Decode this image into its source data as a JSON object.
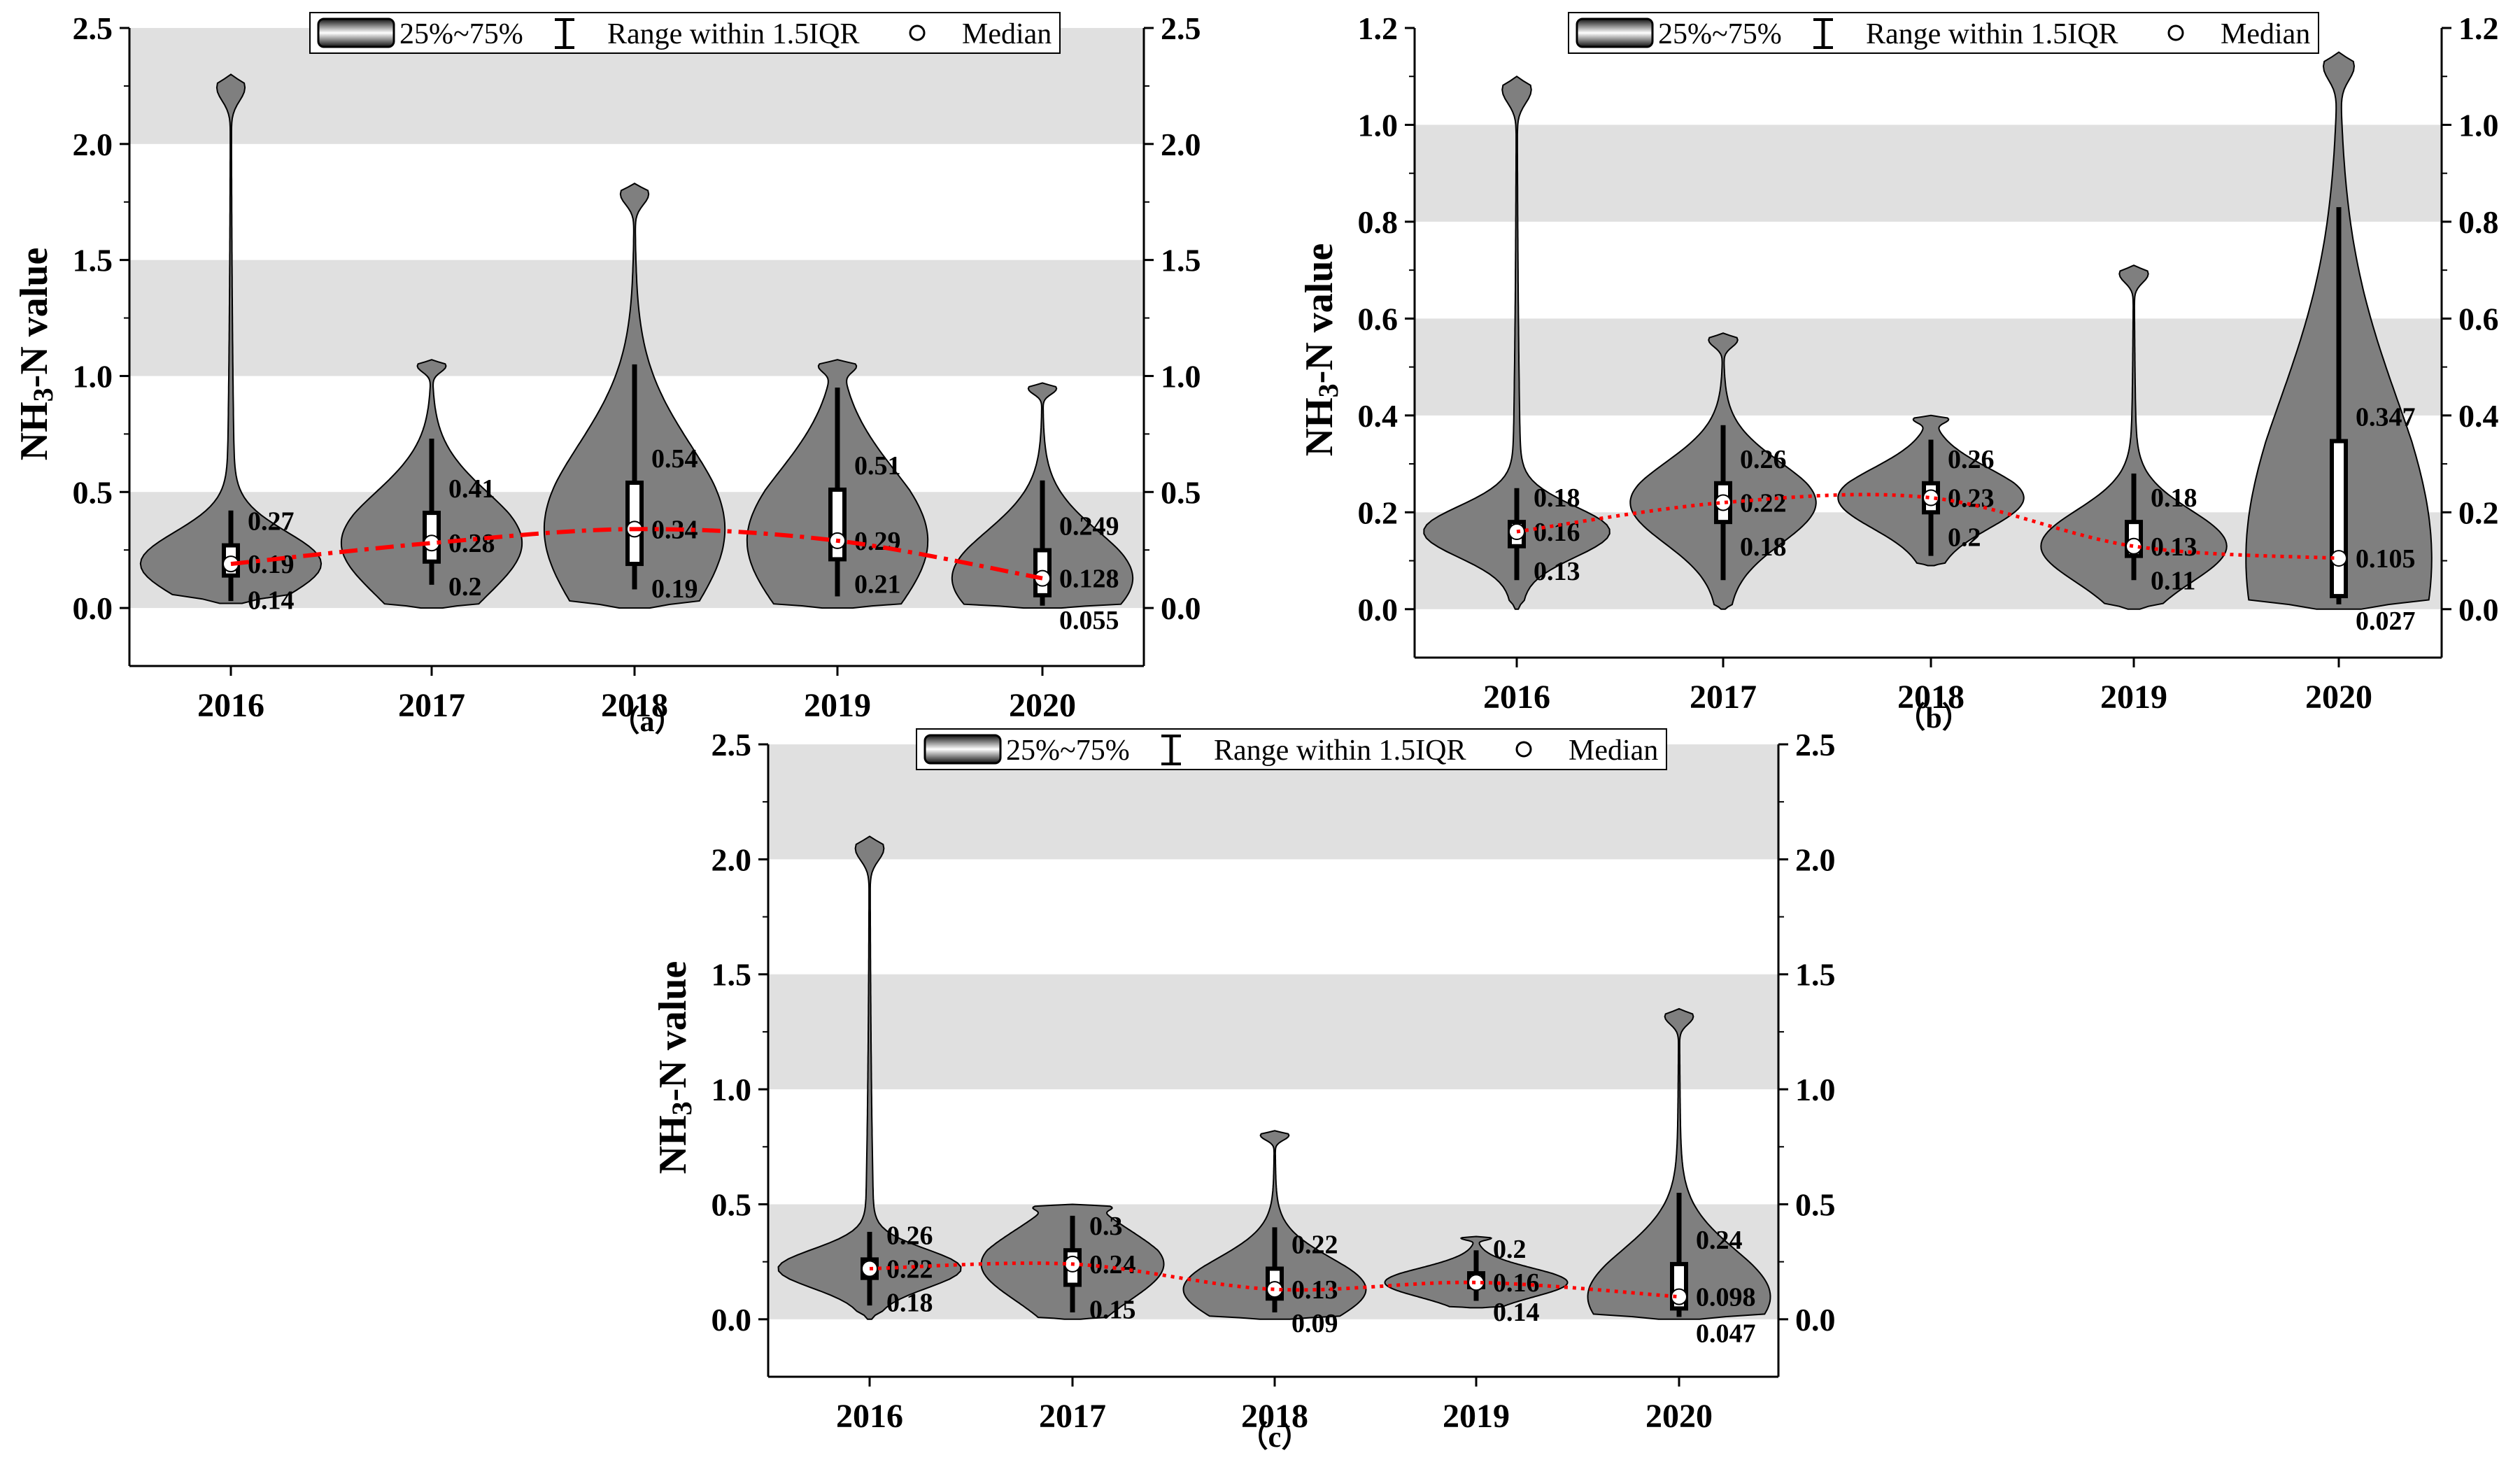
{
  "legend": {
    "box_label": "25%~75%",
    "range_label": "Range within 1.5IQR",
    "median_label": "Median"
  },
  "colors": {
    "violin_fill": "#7f7f7f",
    "band_fill": "#e0e0e0",
    "trend_line": "#ff0000",
    "axis": "#000000"
  },
  "chart_data": [
    {
      "type": "violin",
      "panel_label": "（a）",
      "ylabel": "NH3-N value",
      "ylabel_main": "NH",
      "ylabel_sub": "3",
      "ylabel_rest": "-N value",
      "categories": [
        "2016",
        "2017",
        "2018",
        "2019",
        "2020"
      ],
      "ylim": [
        -0.25,
        2.5
      ],
      "yticks": [
        "0.0",
        "0.5",
        "1.0",
        "1.5",
        "2.0",
        "2.5"
      ],
      "shaded_bands": [
        [
          0.0,
          0.5
        ],
        [
          1.0,
          1.5
        ],
        [
          2.0,
          2.5
        ]
      ],
      "trend_style": "dashdot",
      "series": [
        {
          "year": "2016",
          "min": 0.02,
          "max": 2.3,
          "q1": 0.14,
          "median": 0.19,
          "q3": 0.27,
          "whisker_low": 0.03,
          "whisker_high": 0.42,
          "labels": {
            "q3": "0.27",
            "median": "0.19",
            "q1": "0.14"
          }
        },
        {
          "year": "2017",
          "min": 0.0,
          "max": 1.07,
          "q1": 0.2,
          "median": 0.28,
          "q3": 0.41,
          "whisker_low": 0.1,
          "whisker_high": 0.73,
          "labels": {
            "q3": "0.41",
            "median": "0.28",
            "q1": "0.2"
          }
        },
        {
          "year": "2018",
          "min": 0.0,
          "max": 1.83,
          "q1": 0.19,
          "median": 0.34,
          "q3": 0.54,
          "whisker_low": 0.08,
          "whisker_high": 1.05,
          "labels": {
            "q3": "0.54",
            "median": "0.34",
            "q1": "0.19"
          }
        },
        {
          "year": "2019",
          "min": 0.0,
          "max": 1.07,
          "q1": 0.21,
          "median": 0.29,
          "q3": 0.51,
          "whisker_low": 0.05,
          "whisker_high": 0.95,
          "labels": {
            "q3": "0.51",
            "median": "0.29",
            "q1": "0.21"
          }
        },
        {
          "year": "2020",
          "min": 0.0,
          "max": 0.97,
          "q1": 0.055,
          "median": 0.128,
          "q3": 0.249,
          "whisker_low": 0.01,
          "whisker_high": 0.55,
          "labels": {
            "q3": "0.249",
            "median": "0.128",
            "q1": "0.055"
          }
        }
      ]
    },
    {
      "type": "violin",
      "panel_label": "（b）",
      "ylabel": "NH3-N value",
      "ylabel_main": "NH",
      "ylabel_sub": "3",
      "ylabel_rest": "-N value",
      "categories": [
        "2016",
        "2017",
        "2018",
        "2019",
        "2020"
      ],
      "ylim": [
        -0.1,
        1.2
      ],
      "yticks": [
        "0.0",
        "0.2",
        "0.4",
        "0.6",
        "0.8",
        "1.0",
        "1.2"
      ],
      "shaded_bands": [
        [
          0.0,
          0.2
        ],
        [
          0.4,
          0.6
        ],
        [
          0.8,
          1.0
        ]
      ],
      "trend_style": "dotted",
      "series": [
        {
          "year": "2016",
          "min": 0.0,
          "max": 1.1,
          "q1": 0.13,
          "median": 0.16,
          "q3": 0.18,
          "whisker_low": 0.06,
          "whisker_high": 0.25,
          "labels": {
            "q3": "0.18",
            "median": "0.16",
            "q1": "0.13"
          }
        },
        {
          "year": "2017",
          "min": 0.0,
          "max": 0.57,
          "q1": 0.18,
          "median": 0.22,
          "q3": 0.26,
          "whisker_low": 0.06,
          "whisker_high": 0.38,
          "labels": {
            "q3": "0.26",
            "median": "0.22",
            "q1": "0.18"
          }
        },
        {
          "year": "2018",
          "min": 0.09,
          "max": 0.4,
          "q1": 0.2,
          "median": 0.23,
          "q3": 0.26,
          "whisker_low": 0.11,
          "whisker_high": 0.35,
          "labels": {
            "q3": "0.26",
            "median": "0.23",
            "q1": "0.2"
          }
        },
        {
          "year": "2019",
          "min": 0.0,
          "max": 0.71,
          "q1": 0.11,
          "median": 0.13,
          "q3": 0.18,
          "whisker_low": 0.06,
          "whisker_high": 0.28,
          "labels": {
            "q3": "0.18",
            "median": "0.13",
            "q1": "0.11"
          }
        },
        {
          "year": "2020",
          "min": 0.0,
          "max": 1.15,
          "q1": 0.027,
          "median": 0.105,
          "q3": 0.347,
          "whisker_low": 0.01,
          "whisker_high": 0.83,
          "labels": {
            "q3": "0.347",
            "median": "0.105",
            "q1": "0.027"
          }
        }
      ]
    },
    {
      "type": "violin",
      "panel_label": "（c）",
      "ylabel": "NH3-N value",
      "ylabel_main": "NH",
      "ylabel_sub": "3",
      "ylabel_rest": "-N value",
      "categories": [
        "2016",
        "2017",
        "2018",
        "2019",
        "2020"
      ],
      "ylim": [
        -0.25,
        2.5
      ],
      "yticks": [
        "0.0",
        "0.5",
        "1.0",
        "1.5",
        "2.0",
        "2.5"
      ],
      "shaded_bands": [
        [
          0.0,
          0.5
        ],
        [
          1.0,
          1.5
        ],
        [
          2.0,
          2.5
        ]
      ],
      "trend_style": "dotted",
      "series": [
        {
          "year": "2016",
          "min": 0.0,
          "max": 2.1,
          "q1": 0.18,
          "median": 0.22,
          "q3": 0.26,
          "whisker_low": 0.06,
          "whisker_high": 0.38,
          "labels": {
            "q3": "0.26",
            "median": "0.22",
            "q1": "0.18"
          }
        },
        {
          "year": "2017",
          "min": 0.0,
          "max": 0.5,
          "q1": 0.15,
          "median": 0.24,
          "q3": 0.3,
          "whisker_low": 0.03,
          "whisker_high": 0.45,
          "labels": {
            "q3": "0.3",
            "median": "0.24",
            "q1": "0.15"
          }
        },
        {
          "year": "2018",
          "min": 0.0,
          "max": 0.82,
          "q1": 0.09,
          "median": 0.13,
          "q3": 0.22,
          "whisker_low": 0.03,
          "whisker_high": 0.4,
          "labels": {
            "q3": "0.22",
            "median": "0.13",
            "q1": "0.09"
          }
        },
        {
          "year": "2019",
          "min": 0.05,
          "max": 0.36,
          "q1": 0.14,
          "median": 0.16,
          "q3": 0.2,
          "whisker_low": 0.08,
          "whisker_high": 0.3,
          "labels": {
            "q3": "0.2",
            "median": "0.16",
            "q1": "0.14"
          }
        },
        {
          "year": "2020",
          "min": 0.0,
          "max": 1.35,
          "q1": 0.047,
          "median": 0.098,
          "q3": 0.24,
          "whisker_low": 0.01,
          "whisker_high": 0.55,
          "labels": {
            "q3": "0.24",
            "median": "0.098",
            "q1": "0.047"
          }
        }
      ]
    }
  ]
}
